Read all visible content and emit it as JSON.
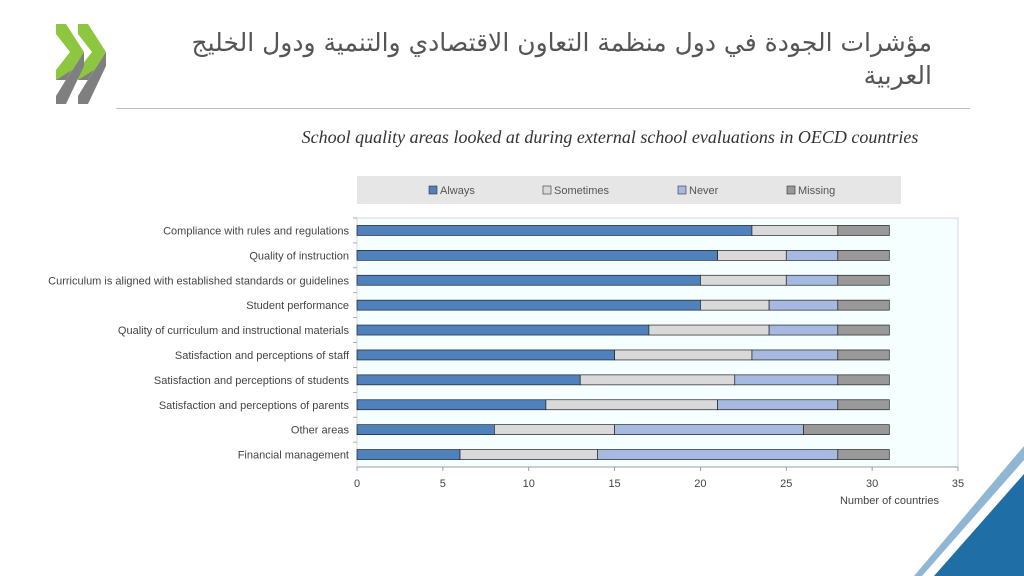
{
  "slide": {
    "title": "مؤشرات الجودة في دول منظمة التعاون الاقتصادي والتنمية ودول الخليج العربية",
    "logo_icon": "double-chevron-icon"
  },
  "colors": {
    "Always": "#4f81bd",
    "Sometimes": "#d9d9d9",
    "Never": "#a6b9e0",
    "Missing": "#999999",
    "plot_background": "#f5ffff",
    "corner_accent": "#1f6ea6",
    "logo_green": "#8dc63f",
    "logo_gray": "#7f7f7f"
  },
  "chart_data": {
    "type": "bar",
    "orientation": "horizontal",
    "stacked": true,
    "title": "School quality areas looked at during external school evaluations in OECD countries",
    "xlabel": "Number of countries",
    "ylabel": "",
    "xlim": [
      0,
      35
    ],
    "xticks": [
      0,
      5,
      10,
      15,
      20,
      25,
      30,
      35
    ],
    "grid": false,
    "legend_position": "top",
    "categories": [
      "Compliance with rules and regulations",
      "Quality of instruction",
      "Curriculum is aligned with established standards or guidelines",
      "Student performance",
      "Quality of curriculum and instructional materials",
      "Satisfaction and perceptions of staff",
      "Satisfaction and perceptions of students",
      "Satisfaction and perceptions of parents",
      "Other areas",
      "Financial management"
    ],
    "series": [
      {
        "name": "Always",
        "values": [
          23,
          21,
          20,
          20,
          17,
          15,
          13,
          11,
          8,
          6
        ]
      },
      {
        "name": "Sometimes",
        "values": [
          5,
          4,
          5,
          4,
          7,
          8,
          9,
          10,
          7,
          8
        ]
      },
      {
        "name": "Never",
        "values": [
          0,
          3,
          3,
          4,
          4,
          5,
          6,
          7,
          11,
          14
        ]
      },
      {
        "name": "Missing",
        "values": [
          3,
          3,
          3,
          3,
          3,
          3,
          3,
          3,
          5,
          3
        ]
      }
    ]
  }
}
